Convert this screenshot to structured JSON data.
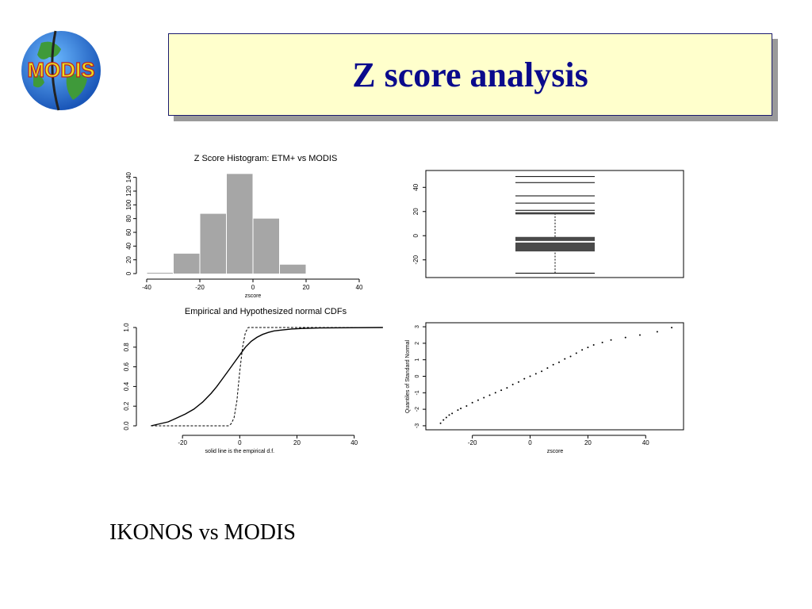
{
  "slide": {
    "title": "Z score analysis",
    "caption": "IKONOS vs MODIS",
    "logo_text": "MODIS"
  },
  "colors": {
    "title_text": "#0a0a8c",
    "title_bg": "#ffffcc",
    "bar_fill": "#a6a6a6",
    "box_fill": "#4a4a4a"
  },
  "chart_data": [
    {
      "type": "bar",
      "title": "Z Score Histogram: ETM+ vs MODIS",
      "xlabel": "zscore",
      "ylabel": "",
      "xlim": [
        -40,
        40
      ],
      "ylim": [
        0,
        150
      ],
      "xticks": [
        "-40",
        "-20",
        "0",
        "20",
        "40"
      ],
      "yticks": [
        "0",
        "20",
        "40",
        "60",
        "80",
        "100",
        "120",
        "140"
      ],
      "bins": [
        [
          -40,
          -30
        ],
        [
          -30,
          -20
        ],
        [
          -20,
          -10
        ],
        [
          -10,
          0
        ],
        [
          0,
          10
        ],
        [
          10,
          20
        ]
      ],
      "values": [
        1,
        29,
        87,
        145,
        80,
        13
      ]
    },
    {
      "type": "box",
      "title": "",
      "ylim": [
        -32,
        52
      ],
      "yticks": [
        "-20",
        "0",
        "20",
        "40"
      ],
      "whisker_low": -31,
      "q1": -13,
      "median": -5,
      "q3": -1,
      "whisker_high": 18,
      "outliers": [
        19,
        21,
        27,
        33,
        44,
        49
      ]
    },
    {
      "type": "line",
      "title": "Empirical and Hypothesized normal CDFs",
      "xlabel": "solid line is the empirical d.f.",
      "xlim": [
        -35,
        52
      ],
      "ylim": [
        0,
        1
      ],
      "xticks": [
        "-20",
        "0",
        "20",
        "40"
      ],
      "yticks": [
        "0.0",
        "0.2",
        "0.4",
        "0.6",
        "0.8",
        "1.0"
      ],
      "series": [
        {
          "style": "solid",
          "x": [
            -31,
            -28,
            -25,
            -22,
            -19,
            -16,
            -13,
            -10,
            -8,
            -6,
            -4,
            -2,
            0,
            2,
            4,
            6,
            8,
            10,
            12,
            15,
            18,
            22,
            28,
            50
          ],
          "y": [
            0.0,
            0.02,
            0.04,
            0.08,
            0.12,
            0.17,
            0.24,
            0.33,
            0.4,
            0.48,
            0.56,
            0.64,
            0.72,
            0.8,
            0.86,
            0.9,
            0.93,
            0.95,
            0.965,
            0.975,
            0.985,
            0.99,
            0.995,
            1.0
          ]
        },
        {
          "style": "dashed",
          "x": [
            -31,
            -4,
            -3,
            -2,
            -1,
            0,
            1,
            2,
            3,
            50
          ],
          "y": [
            0.0,
            0.0,
            0.02,
            0.08,
            0.25,
            0.55,
            0.8,
            0.95,
            1.0,
            1.0
          ]
        }
      ]
    },
    {
      "type": "scatter",
      "title": "",
      "xlabel": "zscore",
      "ylabel": "Quantiles of Standard Normal",
      "xlim": [
        -35,
        52
      ],
      "ylim": [
        -3.1,
        3.1
      ],
      "xticks": [
        "-20",
        "0",
        "20",
        "40"
      ],
      "yticks": [
        "-3",
        "-2",
        "-1",
        "0",
        "1",
        "2",
        "3"
      ],
      "points": [
        [
          -31,
          -2.85
        ],
        [
          -30,
          -2.65
        ],
        [
          -29,
          -2.5
        ],
        [
          -28,
          -2.35
        ],
        [
          -27,
          -2.25
        ],
        [
          -25,
          -2.05
        ],
        [
          -24,
          -1.95
        ],
        [
          -22,
          -1.8
        ],
        [
          -20,
          -1.6
        ],
        [
          -18,
          -1.45
        ],
        [
          -16,
          -1.3
        ],
        [
          -14,
          -1.15
        ],
        [
          -12,
          -1.0
        ],
        [
          -10,
          -0.85
        ],
        [
          -8,
          -0.7
        ],
        [
          -6,
          -0.5
        ],
        [
          -4,
          -0.35
        ],
        [
          -2,
          -0.15
        ],
        [
          0,
          0.0
        ],
        [
          2,
          0.15
        ],
        [
          4,
          0.3
        ],
        [
          6,
          0.5
        ],
        [
          8,
          0.7
        ],
        [
          10,
          0.85
        ],
        [
          12,
          1.05
        ],
        [
          14,
          1.2
        ],
        [
          16,
          1.4
        ],
        [
          18,
          1.6
        ],
        [
          20,
          1.75
        ],
        [
          22,
          1.9
        ],
        [
          25,
          2.05
        ],
        [
          28,
          2.2
        ],
        [
          33,
          2.35
        ],
        [
          38,
          2.5
        ],
        [
          44,
          2.7
        ],
        [
          49,
          2.95
        ]
      ]
    }
  ]
}
